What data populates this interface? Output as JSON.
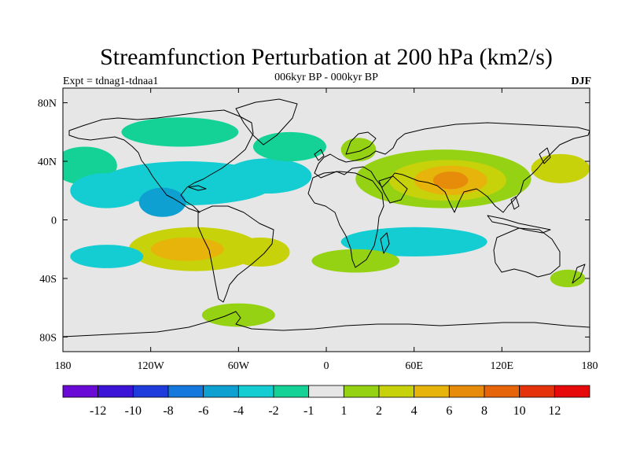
{
  "title": "Streamfunction Perturbation at 200 hPa (km2/s)",
  "subtitle": "006kyr BP - 000kyr BP",
  "left_label": "Expt = tdnag1-tdnaa1",
  "right_label": "DJF",
  "map": {
    "projection": "cylindrical equidistant",
    "lon_range": [
      -180,
      180
    ],
    "lat_range": [
      -90,
      90
    ],
    "lon_ticks": [
      {
        "lon": -180,
        "label": "180"
      },
      {
        "lon": -120,
        "label": "120W"
      },
      {
        "lon": -60,
        "label": "60W"
      },
      {
        "lon": 0,
        "label": "0"
      },
      {
        "lon": 60,
        "label": "60E"
      },
      {
        "lon": 120,
        "label": "120E"
      },
      {
        "lon": 180,
        "label": "180"
      }
    ],
    "lat_ticks": [
      {
        "lat": 80,
        "label": "80N"
      },
      {
        "lat": 40,
        "label": "40N"
      },
      {
        "lat": 0,
        "label": "0"
      },
      {
        "lat": -40,
        "label": "40S"
      },
      {
        "lat": -80,
        "label": "80S"
      }
    ],
    "fill_regions": [
      {
        "name": "n-pacific-west",
        "lon": -165,
        "lat": 37,
        "rlon": 22,
        "rlat": 13,
        "value": -1.5
      },
      {
        "name": "hawaii-low",
        "lon": -150,
        "lat": 20,
        "rlon": 25,
        "rlat": 12,
        "value": -2.5
      },
      {
        "name": "pacific-atlantic-band",
        "lon": -95,
        "lat": 25,
        "rlon": 60,
        "rlat": 15,
        "value": -3
      },
      {
        "name": "e-pacific-core",
        "lon": -112,
        "lat": 12,
        "rlon": 16,
        "rlat": 10,
        "value": -5
      },
      {
        "name": "atlantic-low",
        "lon": -40,
        "lat": 30,
        "rlon": 30,
        "rlat": 12,
        "value": -2.5
      },
      {
        "name": "n-atlantic",
        "lon": -25,
        "lat": 50,
        "rlon": 25,
        "rlat": 10,
        "value": -1.5
      },
      {
        "name": "arctic-canada",
        "lon": -100,
        "lat": 60,
        "rlon": 40,
        "rlat": 10,
        "value": -1.5
      },
      {
        "name": "europe-high",
        "lon": 22,
        "lat": 48,
        "rlon": 12,
        "rlat": 8,
        "value": 1.5
      },
      {
        "name": "asia-high-outer",
        "lon": 80,
        "lat": 28,
        "rlon": 60,
        "rlat": 20,
        "value": 1.5
      },
      {
        "name": "asia-high-mid",
        "lon": 83,
        "lat": 27,
        "rlon": 40,
        "rlat": 14,
        "value": 3
      },
      {
        "name": "asia-high-inner",
        "lon": 85,
        "lat": 27,
        "rlon": 25,
        "rlat": 10,
        "value": 5
      },
      {
        "name": "asia-high-core",
        "lon": 85,
        "lat": 27,
        "rlon": 12,
        "rlat": 6,
        "value": 7
      },
      {
        "name": "n-pacific-east",
        "lon": 160,
        "lat": 35,
        "rlon": 20,
        "rlat": 10,
        "value": 3
      },
      {
        "name": "s-pacific-high",
        "lon": -90,
        "lat": -20,
        "rlon": 45,
        "rlat": 15,
        "value": 2.5
      },
      {
        "name": "s-pacific-core",
        "lon": -95,
        "lat": -20,
        "rlon": 25,
        "rlat": 8,
        "value": 5
      },
      {
        "name": "s-atlantic-high",
        "lon": -45,
        "lat": -22,
        "rlon": 20,
        "rlat": 10,
        "value": 3
      },
      {
        "name": "s-pacific-low",
        "lon": -150,
        "lat": -25,
        "rlon": 25,
        "rlat": 8,
        "value": -2.5
      },
      {
        "name": "indian-ocean-low",
        "lon": 60,
        "lat": -15,
        "rlon": 50,
        "rlat": 10,
        "value": -3
      },
      {
        "name": "s-indian-band",
        "lon": 20,
        "lat": -28,
        "rlon": 30,
        "rlat": 8,
        "value": 1.5
      },
      {
        "name": "australia-high",
        "lon": 165,
        "lat": -40,
        "rlon": 12,
        "rlat": 6,
        "value": 1.5
      },
      {
        "name": "southern-ocean-high",
        "lon": -60,
        "lat": -65,
        "rlon": 25,
        "rlat": 8,
        "value": 1.5
      }
    ]
  },
  "colorbar": {
    "colors": [
      "#6a0ad6",
      "#3c14d8",
      "#1e3cdc",
      "#1478dc",
      "#0fa0d2",
      "#14cdd2",
      "#14d296",
      "#e6e6e6",
      "#96d214",
      "#c8d20a",
      "#e6b40a",
      "#e68c0a",
      "#e6640a",
      "#e6320a",
      "#e60a0a"
    ],
    "labels": [
      "-12",
      "-10",
      "-8",
      "-6",
      "-4",
      "-2",
      "-1",
      "1",
      "2",
      "4",
      "6",
      "8",
      "10",
      "12"
    ]
  }
}
